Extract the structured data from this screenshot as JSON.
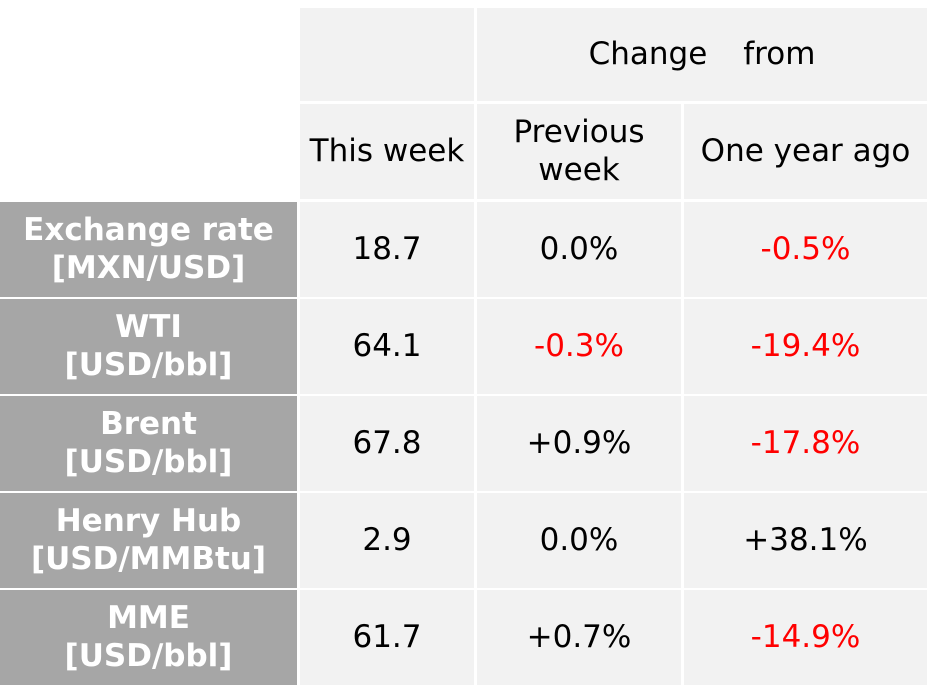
{
  "header": {
    "change_from_word1": "Change",
    "change_from_word2": "from",
    "this_week": "This week",
    "previous_week": "Previous\nweek",
    "one_year_ago": "One year ago"
  },
  "rows": [
    {
      "label": "Exchange rate\n[MXN/USD]",
      "this_week": "18.7",
      "previous_week": "0.0%",
      "previous_week_sign": "neutral",
      "one_year_ago": "-0.5%",
      "one_year_ago_sign": "negative"
    },
    {
      "label": "WTI\n[USD/bbl]",
      "this_week": "64.1",
      "previous_week": "-0.3%",
      "previous_week_sign": "negative",
      "one_year_ago": "-19.4%",
      "one_year_ago_sign": "negative"
    },
    {
      "label": "Brent\n[USD/bbl]",
      "this_week": "67.8",
      "previous_week": "+0.9%",
      "previous_week_sign": "positive",
      "one_year_ago": "-17.8%",
      "one_year_ago_sign": "negative"
    },
    {
      "label": "Henry Hub\n[USD/MMBtu]",
      "this_week": "2.9",
      "previous_week": "0.0%",
      "previous_week_sign": "neutral",
      "one_year_ago": "+38.1%",
      "one_year_ago_sign": "positive"
    },
    {
      "label": "MME\n[USD/bbl]",
      "this_week": "61.7",
      "previous_week": "+0.7%",
      "previous_week_sign": "positive",
      "one_year_ago": "-14.9%",
      "one_year_ago_sign": "negative"
    }
  ],
  "colors": {
    "negative": "#ff0000",
    "row_header_bg": "#a6a6a6",
    "cell_bg": "#f2f2f2"
  }
}
